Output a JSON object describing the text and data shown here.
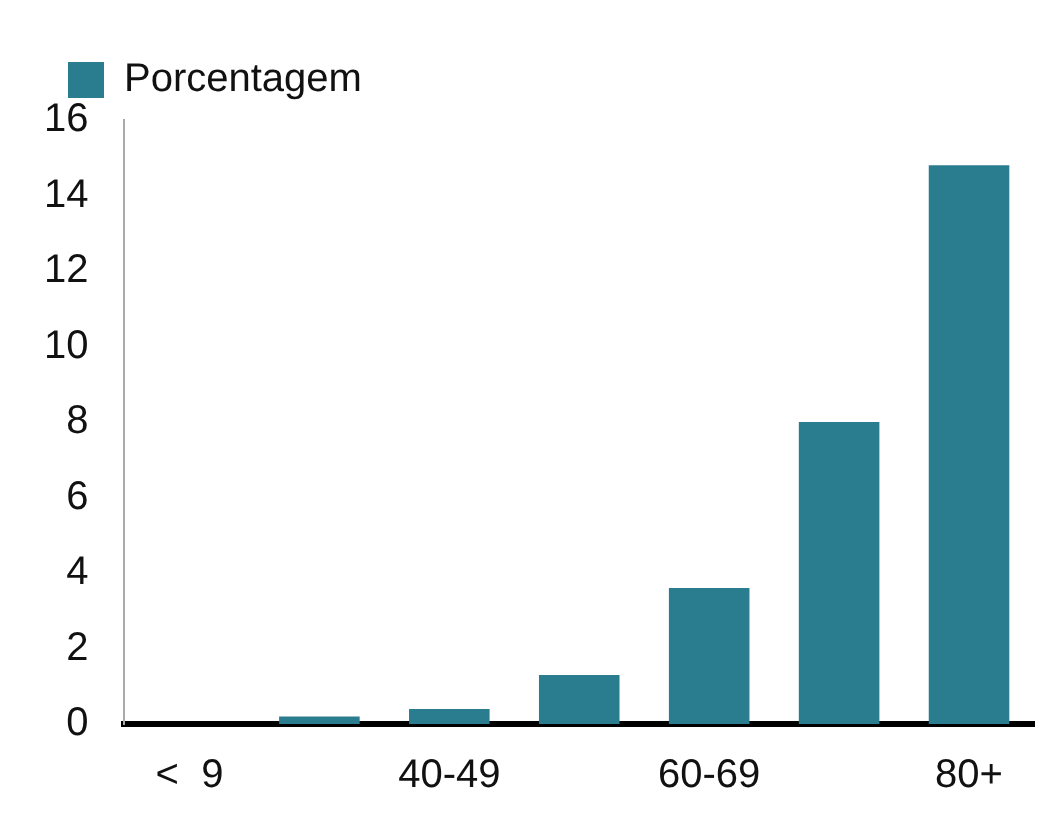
{
  "chart_data": {
    "type": "bar",
    "categories": [
      "<  9",
      null,
      "40-49",
      null,
      "60-69",
      null,
      "80+"
    ],
    "series": [
      {
        "name": "Porcentagem",
        "color": "#2a7d8e",
        "values": [
          0,
          0.2,
          0.4,
          1.3,
          3.6,
          8.0,
          14.8
        ]
      }
    ],
    "ylim": [
      0,
      16
    ],
    "yticks": [
      0,
      2,
      4,
      6,
      8,
      10,
      12,
      14,
      16
    ],
    "grid": false,
    "legend": "top left"
  }
}
